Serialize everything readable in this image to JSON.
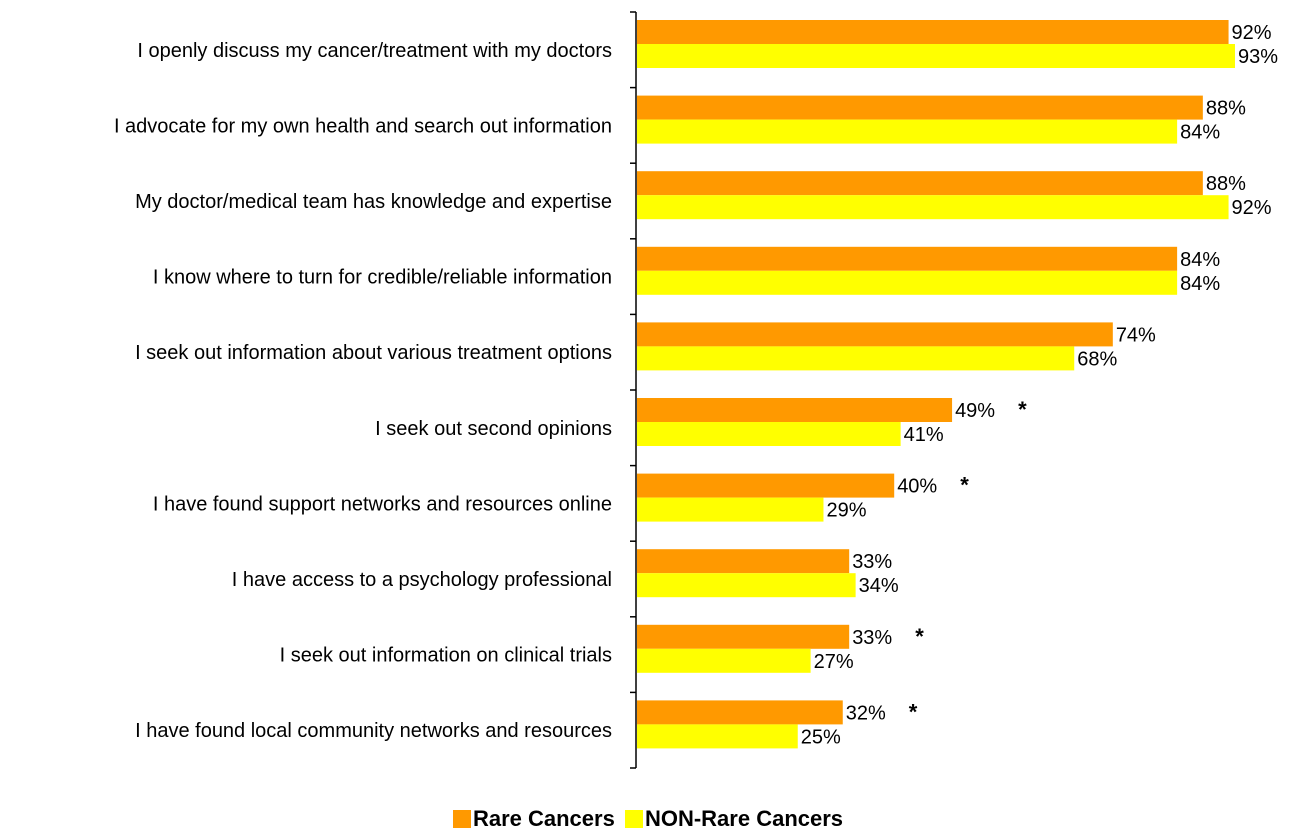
{
  "chart_data": {
    "type": "bar",
    "orientation": "horizontal",
    "categories": [
      "I openly discuss my cancer/treatment with my doctors",
      "I advocate for my own health and search out information",
      "My doctor/medical team has knowledge and expertise",
      "I know where to turn for credible/reliable information",
      "I seek out information about various treatment options",
      "I seek out second opinions",
      "I have found support networks and resources online",
      "I have access to a psychology professional",
      "I seek out information on clinical trials",
      "I have found local community networks and resources"
    ],
    "series": [
      {
        "name": "Rare Cancers",
        "color": "#FF9900",
        "values": [
          92,
          88,
          88,
          84,
          74,
          49,
          40,
          33,
          33,
          32
        ]
      },
      {
        "name": "NON-Rare Cancers",
        "color": "#FFFF00",
        "values": [
          93,
          84,
          92,
          84,
          68,
          41,
          29,
          34,
          27,
          25
        ]
      }
    ],
    "value_labels": {
      "Rare Cancers": [
        "92%",
        "88%",
        "88%",
        "84%",
        "74%",
        "49%",
        "40%",
        "33%",
        "33%",
        "32%"
      ],
      "NON-Rare Cancers": [
        "93%",
        "84%",
        "92%",
        "84%",
        "68%",
        "41%",
        "29%",
        "34%",
        "27%",
        "25%"
      ]
    },
    "significance_marker": "*",
    "significant": [
      false,
      false,
      false,
      false,
      false,
      true,
      true,
      false,
      true,
      true
    ],
    "xlim": [
      0,
      100
    ],
    "legend_position": "bottom"
  }
}
